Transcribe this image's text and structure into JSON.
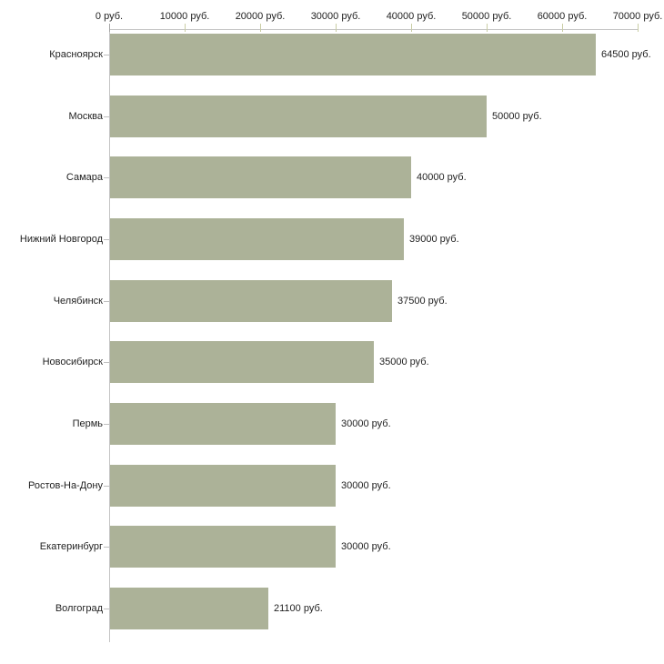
{
  "chart_data": {
    "type": "bar",
    "orientation": "horizontal",
    "title": "",
    "categories": [
      "Красноярск",
      "Москва",
      "Самара",
      "Нижний Новгород",
      "Челябинск",
      "Новосибирск",
      "Пермь",
      "Ростов-На-Дону",
      "Екатеринбург",
      "Волгоград"
    ],
    "values": [
      64500,
      50000,
      40000,
      39000,
      37500,
      35000,
      30000,
      30000,
      30000,
      21100
    ],
    "value_labels": [
      "64500 руб.",
      "50000 руб.",
      "40000 руб.",
      "39000 руб.",
      "37500 руб.",
      "35000 руб.",
      "30000 руб.",
      "30000 руб.",
      "30000 руб.",
      "21100 руб."
    ],
    "x_axis": {
      "position": "top",
      "tick_values": [
        0,
        10000,
        20000,
        30000,
        40000,
        50000,
        60000,
        70000
      ],
      "tick_labels": [
        "0 руб.",
        "10000 руб.",
        "20000 руб.",
        "30000 руб.",
        "40000 руб.",
        "50000 руб.",
        "60000 руб.",
        "70000 руб."
      ]
    },
    "xlim": [
      0,
      70000
    ],
    "grid": false,
    "legend": false,
    "colors": {
      "bar": "#acb298",
      "axis_line": "#c4c4c4",
      "axis_tick": "#c9cda4",
      "category_tick": "#bfbfbf",
      "text": "#1f1f1f",
      "background": "#ffffff"
    }
  }
}
